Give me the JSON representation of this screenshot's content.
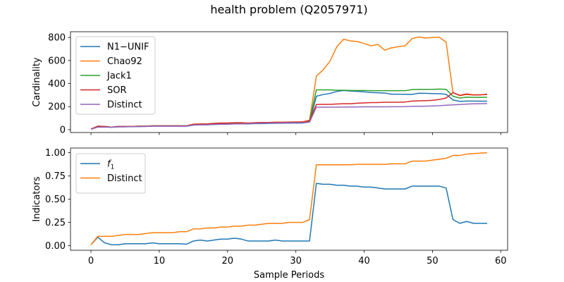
{
  "title": "health problem (Q2057971)",
  "chart_data": [
    {
      "type": "line",
      "ylabel": "Cardinality",
      "xlabel": "",
      "xlim": [
        -3,
        61
      ],
      "ylim": [
        -25,
        850
      ],
      "xticks": [
        0,
        10,
        20,
        30,
        40,
        50,
        60
      ],
      "yticks": [
        0,
        200,
        400,
        600,
        800
      ],
      "show_xtick_labels": false,
      "legend_position": "upper-left",
      "grid": false,
      "series": [
        {
          "name": "N1−UNIF",
          "color": "#1f77b4",
          "x": [
            0,
            1,
            2,
            3,
            4,
            5,
            6,
            7,
            8,
            9,
            10,
            11,
            12,
            13,
            14,
            15,
            16,
            17,
            18,
            19,
            20,
            21,
            22,
            23,
            24,
            25,
            26,
            27,
            28,
            29,
            30,
            31,
            32,
            33,
            34,
            35,
            36,
            37,
            38,
            39,
            40,
            41,
            42,
            43,
            44,
            45,
            46,
            47,
            48,
            49,
            50,
            51,
            52,
            53,
            54,
            55,
            56,
            57,
            58
          ],
          "values": [
            5,
            28,
            25,
            20,
            25,
            25,
            26,
            27,
            28,
            30,
            30,
            30,
            30,
            30,
            30,
            40,
            42,
            42,
            45,
            47,
            48,
            50,
            50,
            50,
            52,
            52,
            54,
            55,
            56,
            57,
            57,
            58,
            66,
            290,
            305,
            315,
            332,
            340,
            335,
            332,
            328,
            322,
            320,
            318,
            308,
            308,
            307,
            306,
            316,
            315,
            313,
            312,
            307,
            258,
            245,
            248,
            248,
            247,
            247
          ]
        },
        {
          "name": "Chao92",
          "color": "#ff7f0e",
          "x": [
            0,
            1,
            2,
            3,
            4,
            5,
            6,
            7,
            8,
            9,
            10,
            11,
            12,
            13,
            14,
            15,
            16,
            17,
            18,
            19,
            20,
            21,
            22,
            23,
            24,
            25,
            26,
            27,
            28,
            29,
            30,
            31,
            32,
            33,
            34,
            35,
            36,
            37,
            38,
            39,
            40,
            41,
            42,
            43,
            44,
            45,
            46,
            47,
            48,
            49,
            50,
            51,
            52,
            53,
            54,
            55,
            56,
            57,
            58
          ],
          "values": [
            5,
            30,
            28,
            22,
            28,
            28,
            28,
            30,
            30,
            33,
            33,
            33,
            33,
            33,
            33,
            48,
            50,
            50,
            55,
            58,
            58,
            60,
            60,
            58,
            60,
            62,
            62,
            65,
            65,
            66,
            67,
            68,
            82,
            465,
            520,
            595,
            720,
            785,
            770,
            765,
            748,
            728,
            740,
            690,
            710,
            720,
            728,
            790,
            805,
            795,
            800,
            802,
            760,
            320,
            295,
            305,
            300,
            302,
            305
          ]
        },
        {
          "name": "Jack1",
          "color": "#2ca02c",
          "x": [
            0,
            1,
            2,
            3,
            4,
            5,
            6,
            7,
            8,
            9,
            10,
            11,
            12,
            13,
            14,
            15,
            16,
            17,
            18,
            19,
            20,
            21,
            22,
            23,
            24,
            25,
            26,
            27,
            28,
            29,
            30,
            31,
            32,
            33,
            34,
            35,
            36,
            37,
            38,
            39,
            40,
            41,
            42,
            43,
            44,
            45,
            46,
            47,
            48,
            49,
            50,
            51,
            52,
            53,
            54,
            55,
            56,
            57,
            58
          ],
          "values": [
            5,
            30,
            28,
            22,
            28,
            28,
            28,
            30,
            30,
            33,
            33,
            33,
            33,
            33,
            33,
            45,
            47,
            47,
            52,
            55,
            55,
            58,
            58,
            55,
            58,
            60,
            60,
            62,
            62,
            63,
            64,
            65,
            75,
            345,
            345,
            345,
            342,
            342,
            340,
            340,
            340,
            338,
            338,
            338,
            338,
            338,
            338,
            348,
            350,
            350,
            350,
            352,
            350,
            290,
            275,
            282,
            280,
            280,
            282
          ]
        },
        {
          "name": "SOR",
          "color": "#d62728",
          "x": [
            0,
            1,
            2,
            3,
            4,
            5,
            6,
            7,
            8,
            9,
            10,
            11,
            12,
            13,
            14,
            15,
            16,
            17,
            18,
            19,
            20,
            21,
            22,
            23,
            24,
            25,
            26,
            27,
            28,
            29,
            30,
            31,
            32,
            33,
            34,
            35,
            36,
            37,
            38,
            39,
            40,
            41,
            42,
            43,
            44,
            45,
            46,
            47,
            48,
            49,
            50,
            51,
            52,
            53,
            54,
            55,
            56,
            57,
            58
          ],
          "values": [
            5,
            30,
            28,
            22,
            28,
            28,
            28,
            30,
            30,
            33,
            33,
            33,
            33,
            33,
            33,
            47,
            49,
            49,
            54,
            57,
            57,
            60,
            60,
            57,
            60,
            62,
            62,
            64,
            64,
            65,
            66,
            67,
            78,
            218,
            220,
            220,
            223,
            225,
            225,
            230,
            232,
            235,
            235,
            238,
            238,
            238,
            240,
            248,
            250,
            252,
            255,
            262,
            275,
            322,
            298,
            310,
            302,
            302,
            308
          ]
        },
        {
          "name": "Distinct",
          "color": "#9467bd",
          "x": [
            0,
            1,
            2,
            3,
            4,
            5,
            6,
            7,
            8,
            9,
            10,
            11,
            12,
            13,
            14,
            15,
            16,
            17,
            18,
            19,
            20,
            21,
            22,
            23,
            24,
            25,
            26,
            27,
            28,
            29,
            30,
            31,
            32,
            33,
            34,
            35,
            36,
            37,
            38,
            39,
            40,
            41,
            42,
            43,
            44,
            45,
            46,
            47,
            48,
            49,
            50,
            51,
            52,
            53,
            54,
            55,
            56,
            57,
            58
          ],
          "values": [
            3,
            22,
            22,
            22,
            24,
            25,
            26,
            27,
            28,
            30,
            30,
            30,
            30,
            30,
            30,
            40,
            42,
            42,
            45,
            47,
            48,
            50,
            50,
            52,
            54,
            55,
            57,
            58,
            59,
            60,
            60,
            61,
            65,
            195,
            195,
            195,
            196,
            196,
            197,
            197,
            198,
            198,
            198,
            198,
            199,
            199,
            200,
            203,
            203,
            204,
            206,
            208,
            212,
            215,
            218,
            222,
            224,
            225,
            227
          ]
        }
      ]
    },
    {
      "type": "line",
      "ylabel": "Indicators",
      "xlabel": "Sample Periods",
      "xlim": [
        -3,
        61
      ],
      "ylim": [
        -0.05,
        1.05
      ],
      "xticks": [
        0,
        10,
        20,
        30,
        40,
        50,
        60
      ],
      "yticks": [
        0.0,
        0.25,
        0.5,
        0.75,
        1.0
      ],
      "ytick_labels": [
        "0.00",
        "0.25",
        "0.50",
        "0.75",
        "1.00"
      ],
      "show_xtick_labels": true,
      "legend_position": "upper-left",
      "grid": false,
      "series": [
        {
          "name": "f1",
          "color": "#1f77b4",
          "x": [
            0,
            1,
            2,
            3,
            4,
            5,
            6,
            7,
            8,
            9,
            10,
            11,
            12,
            13,
            14,
            15,
            16,
            17,
            18,
            19,
            20,
            21,
            22,
            23,
            24,
            25,
            26,
            27,
            28,
            29,
            30,
            31,
            32,
            33,
            34,
            35,
            36,
            37,
            38,
            39,
            40,
            41,
            42,
            43,
            44,
            45,
            46,
            47,
            48,
            49,
            50,
            51,
            52,
            53,
            54,
            55,
            56,
            57,
            58
          ],
          "values": [
            0.01,
            0.09,
            0.03,
            0.01,
            0.01,
            0.02,
            0.02,
            0.02,
            0.02,
            0.03,
            0.02,
            0.02,
            0.02,
            0.02,
            0.015,
            0.05,
            0.06,
            0.05,
            0.06,
            0.07,
            0.07,
            0.08,
            0.07,
            0.05,
            0.05,
            0.05,
            0.05,
            0.06,
            0.05,
            0.05,
            0.05,
            0.05,
            0.05,
            0.67,
            0.66,
            0.66,
            0.65,
            0.65,
            0.64,
            0.64,
            0.63,
            0.63,
            0.62,
            0.61,
            0.61,
            0.61,
            0.61,
            0.64,
            0.64,
            0.64,
            0.64,
            0.64,
            0.62,
            0.28,
            0.24,
            0.26,
            0.24,
            0.24,
            0.24
          ]
        },
        {
          "name": "Distinct",
          "color": "#ff7f0e",
          "x": [
            0,
            1,
            2,
            3,
            4,
            5,
            6,
            7,
            8,
            9,
            10,
            11,
            12,
            13,
            14,
            15,
            16,
            17,
            18,
            19,
            20,
            21,
            22,
            23,
            24,
            25,
            26,
            27,
            28,
            29,
            30,
            31,
            32,
            33,
            34,
            35,
            36,
            37,
            38,
            39,
            40,
            41,
            42,
            43,
            44,
            45,
            46,
            47,
            48,
            49,
            50,
            51,
            52,
            53,
            54,
            55,
            56,
            57,
            58
          ],
          "values": [
            0.01,
            0.1,
            0.1,
            0.1,
            0.11,
            0.12,
            0.12,
            0.12,
            0.13,
            0.14,
            0.14,
            0.14,
            0.14,
            0.15,
            0.15,
            0.18,
            0.18,
            0.19,
            0.19,
            0.2,
            0.2,
            0.21,
            0.21,
            0.22,
            0.22,
            0.23,
            0.24,
            0.24,
            0.24,
            0.25,
            0.25,
            0.25,
            0.28,
            0.87,
            0.87,
            0.87,
            0.87,
            0.87,
            0.87,
            0.875,
            0.875,
            0.875,
            0.875,
            0.875,
            0.88,
            0.88,
            0.88,
            0.91,
            0.91,
            0.91,
            0.92,
            0.93,
            0.94,
            0.97,
            0.97,
            0.985,
            0.99,
            0.995,
            1.0
          ]
        }
      ]
    }
  ]
}
